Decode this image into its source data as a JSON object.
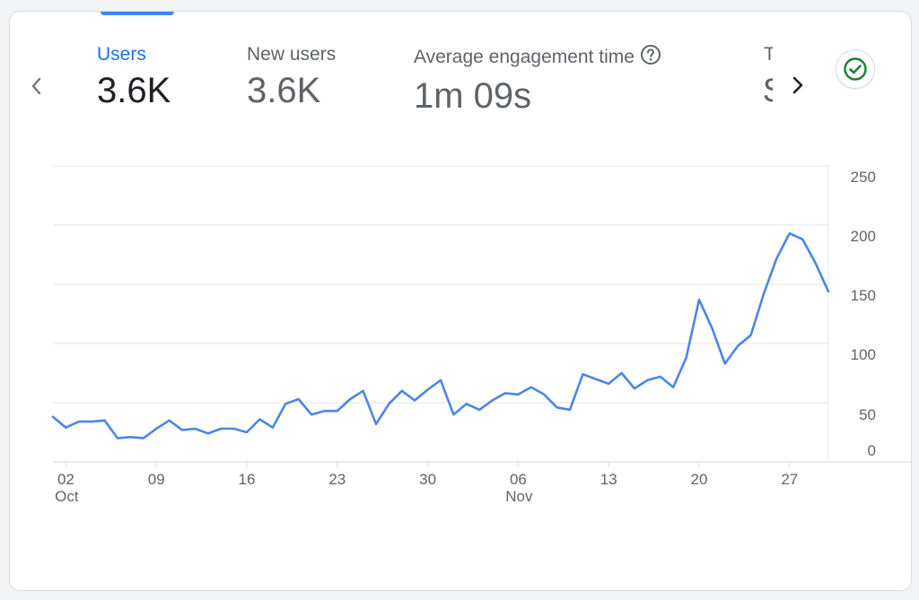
{
  "metrics": [
    {
      "label": "Users",
      "value": "3.6K",
      "active": true
    },
    {
      "label": "New users",
      "value": "3.6K",
      "active": false
    },
    {
      "label": "Average engagement time",
      "value": "1m 09s",
      "active": false
    },
    {
      "label": "T",
      "value": "$",
      "active": false
    }
  ],
  "colors": {
    "accent": "#1a73e8",
    "line": "#4a86e8",
    "check": "#188038"
  },
  "icons": {
    "prev": "chevron-left-icon",
    "next": "chevron-right-icon",
    "help": "help-circle-icon",
    "status": "check-circle-icon"
  },
  "chart_data": {
    "type": "line",
    "series": [
      {
        "values": [
          38,
          29,
          34,
          34,
          35,
          20,
          21,
          20,
          28,
          35,
          27,
          28,
          24,
          28,
          28,
          25,
          36,
          29,
          49,
          53,
          40,
          43,
          43,
          53,
          60,
          32,
          49,
          60,
          52,
          61,
          69,
          40,
          49,
          44,
          52,
          58,
          57,
          63,
          57,
          46,
          44,
          74,
          70,
          66,
          75,
          62,
          69,
          72,
          63,
          88,
          137,
          113,
          83,
          98,
          107,
          142,
          172,
          193,
          188,
          168,
          144
        ],
        "color": "#4a86e8"
      }
    ],
    "x_start": "2023-10-01",
    "x_tick_labels": [
      {
        "day": "02",
        "month": "Oct"
      },
      {
        "day": "09",
        "month": ""
      },
      {
        "day": "16",
        "month": ""
      },
      {
        "day": "23",
        "month": ""
      },
      {
        "day": "30",
        "month": ""
      },
      {
        "day": "06",
        "month": "Nov"
      },
      {
        "day": "13",
        "month": ""
      },
      {
        "day": "20",
        "month": ""
      },
      {
        "day": "27",
        "month": ""
      }
    ],
    "y_ticks": [
      0,
      50,
      100,
      150,
      200,
      250
    ],
    "ylim": [
      0,
      250
    ],
    "y_axis_side": "right",
    "grid": true
  }
}
